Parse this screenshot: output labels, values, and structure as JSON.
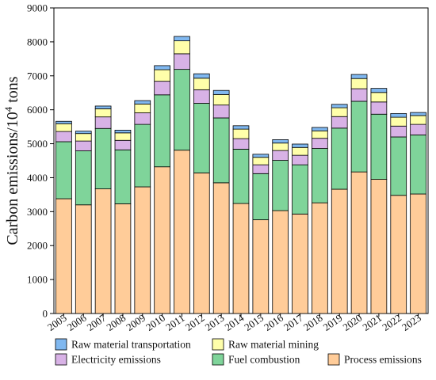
{
  "chart_data": {
    "type": "bar",
    "stacked": true,
    "categories": [
      "2005",
      "2006",
      "2007",
      "2008",
      "2009",
      "2010",
      "2011",
      "2012",
      "2013",
      "2014",
      "2015",
      "2016",
      "2017",
      "2018",
      "2019",
      "2020",
      "2021",
      "2022",
      "2023"
    ],
    "ylabel": "Carbon emissions/10",
    "ylabel_sup": "4",
    "ylabel_suffix": " tons",
    "ylim": [
      0,
      9000
    ],
    "yticks": [
      0,
      1000,
      2000,
      3000,
      4000,
      5000,
      6000,
      7000,
      8000,
      9000
    ],
    "grid": false,
    "legend_position": "bottom",
    "series": [
      {
        "name": "Process emissions",
        "color": "#FFCC99",
        "values": [
          3380,
          3200,
          3670,
          3230,
          3730,
          4320,
          4810,
          4140,
          3850,
          3240,
          2760,
          3030,
          2930,
          3260,
          3660,
          4170,
          3950,
          3480,
          3520
        ]
      },
      {
        "name": "Fuel combustion",
        "color": "#7FD49A",
        "values": [
          1680,
          1590,
          1780,
          1590,
          1840,
          2120,
          2380,
          2050,
          1910,
          1600,
          1360,
          1480,
          1450,
          1600,
          1800,
          2080,
          1920,
          1720,
          1740
        ]
      },
      {
        "name": "Electricity emissions",
        "color": "#D8B2E6",
        "values": [
          300,
          290,
          340,
          280,
          340,
          400,
          460,
          400,
          380,
          310,
          260,
          290,
          280,
          300,
          340,
          370,
          360,
          320,
          310
        ]
      },
      {
        "name": "Raw material mining",
        "color": "#FFFFAA",
        "values": [
          230,
          220,
          240,
          220,
          260,
          340,
          380,
          340,
          310,
          280,
          220,
          220,
          230,
          220,
          260,
          300,
          280,
          260,
          260
        ]
      },
      {
        "name": "Raw material transportation",
        "color": "#80B8F0",
        "values": [
          70,
          70,
          80,
          80,
          100,
          120,
          130,
          130,
          120,
          100,
          90,
          100,
          100,
          100,
          100,
          120,
          120,
          110,
          90
        ]
      }
    ],
    "legend_order": [
      "Raw material transportation",
      "Raw material mining",
      "Electricity emissions",
      "Fuel combustion",
      "Process emissions"
    ]
  }
}
